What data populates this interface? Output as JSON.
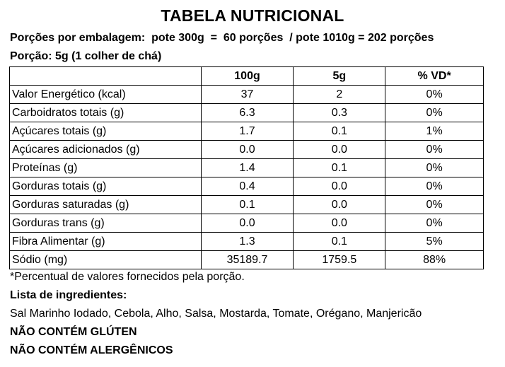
{
  "title": "TABELA NUTRICIONAL",
  "servings_line": "Porções por embalagem:  pote 300g  =  60 porções  / pote 1010g = 202 porções",
  "portion_line": "Porção: 5g (1 colher de chá)",
  "table": {
    "headers": [
      "",
      "100g",
      "5g",
      "% VD*"
    ],
    "rows": [
      {
        "name": "Valor Energético (kcal)",
        "v100": "37",
        "v5": "2",
        "vd": "0%"
      },
      {
        "name": "Carboidratos totais (g)",
        "v100": "6.3",
        "v5": "0.3",
        "vd": "0%"
      },
      {
        "name": "Açúcares totais (g)",
        "v100": "1.7",
        "v5": "0.1",
        "vd": "1%"
      },
      {
        "name": "Açúcares adicionados (g)",
        "v100": "0.0",
        "v5": "0.0",
        "vd": "0%"
      },
      {
        "name": "Proteínas (g)",
        "v100": "1.4",
        "v5": "0.1",
        "vd": "0%"
      },
      {
        "name": "Gorduras totais (g)",
        "v100": "0.4",
        "v5": "0.0",
        "vd": "0%"
      },
      {
        "name": "Gorduras saturadas (g)",
        "v100": "0.1",
        "v5": "0.0",
        "vd": "0%"
      },
      {
        "name": "Gorduras trans (g)",
        "v100": "0.0",
        "v5": "0.0",
        "vd": "0%"
      },
      {
        "name": "Fibra Alimentar (g)",
        "v100": "1.3",
        "v5": "0.1",
        "vd": "5%"
      },
      {
        "name": "Sódio (mg)",
        "v100": "35189.7",
        "v5": "1759.5",
        "vd": "88%"
      }
    ]
  },
  "footnote": "*Percentual de valores fornecidos pela porção.",
  "ingredients_heading": "Lista de ingredientes:",
  "ingredients": "Sal Marinho Iodado, Cebola, Alho, Salsa, Mostarda, Tomate, Orégano, Manjericão",
  "notice_gluten": "NÃO CONTÉM GLÚTEN",
  "notice_allergens": "NÃO CONTÉM ALERGÊNICOS"
}
